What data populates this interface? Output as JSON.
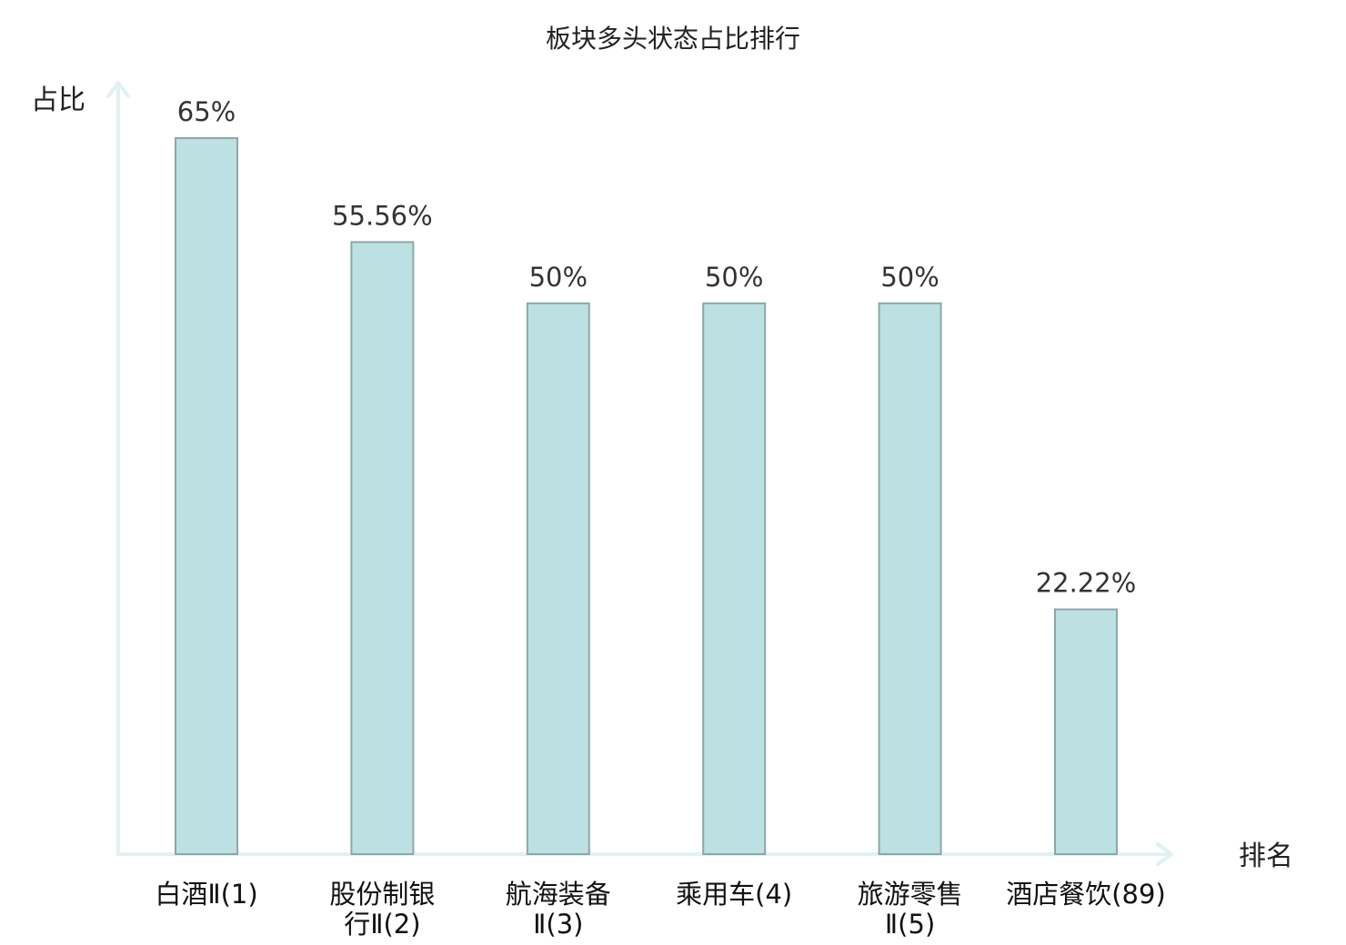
{
  "chart_data": {
    "type": "bar",
    "title": "板块多头状态占比排行",
    "ylabel": "占比",
    "xlabel": "排名",
    "categories": [
      [
        "白酒Ⅱ(1)"
      ],
      [
        "股份制银",
        "行Ⅱ(2)"
      ],
      [
        "航海装备",
        "Ⅱ(3)"
      ],
      [
        "乘用车(4)"
      ],
      [
        "旅游零售",
        "Ⅱ(5)"
      ],
      [
        "酒店餐饮(89)"
      ]
    ],
    "values": [
      65,
      55.56,
      50,
      50,
      50,
      22.22
    ],
    "value_labels": [
      "65%",
      "55.56%",
      "50%",
      "50%",
      "50%",
      "22.22%"
    ],
    "highlight_index": 5,
    "ylim": [
      0,
      65
    ],
    "grid": false,
    "colors": {
      "bar_fill": "#bde0e3",
      "bar_stroke": "#8aa8aa",
      "axis": "#dff2ef",
      "highlight_text": "#e0201b",
      "text": "#222222"
    }
  }
}
